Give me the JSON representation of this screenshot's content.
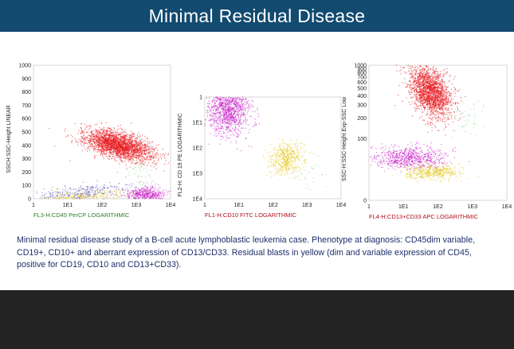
{
  "header": {
    "title": "Minimal Residual Disease",
    "background": "#124a70"
  },
  "chart_data": [
    {
      "type": "scatter",
      "xlabel": "FL3-H:CD45 PerCP LOGARITHMIC",
      "ylabel": "SSCH:SSC-Height LINEAR",
      "xlabel_color": "#2e7d2e",
      "x_scale": "log",
      "y_scale": "linear",
      "xlim": [
        1,
        10000
      ],
      "ylim": [
        0,
        1000
      ],
      "x_ticks": [
        "1",
        "1E1",
        "1E2",
        "1E3",
        "1E4"
      ],
      "y_ticks": [
        "0",
        "100",
        "200",
        "300",
        "400",
        "500",
        "600",
        "700",
        "800",
        "900",
        "1000"
      ],
      "populations": [
        {
          "color": "#e8141a",
          "x_center": 300,
          "y_center": 400,
          "density": "high"
        },
        {
          "color": "#c71ac7",
          "x_center": 1800,
          "y_center": 30,
          "density": "high"
        },
        {
          "color": "#e3c40a",
          "x_center": 20,
          "y_center": 5,
          "density": "medium"
        },
        {
          "color": "#6a5fc4",
          "x_center": 20,
          "y_center": 40,
          "density": "medium"
        },
        {
          "color": "#9bd49b",
          "x_center": 1500,
          "y_center": 180,
          "density": "low"
        }
      ]
    },
    {
      "type": "scatter",
      "xlabel": "FL1-H:CD10 FITC LOGARITHMIC",
      "ylabel": "FL2-H: CD 19 PE LOGARITHMIC",
      "xlabel_color": "#b0101a",
      "x_scale": "log",
      "y_scale": "log",
      "xlim": [
        1,
        10000
      ],
      "ylim": [
        1,
        10000
      ],
      "x_ticks": [
        "1",
        "1E1",
        "1E2",
        "1E3",
        "1E4"
      ],
      "y_ticks": [
        "1",
        "1E1",
        "1E2",
        "1E3",
        "1E4"
      ],
      "populations": [
        {
          "color": "#c71ac7",
          "x_center": 5,
          "y_center": 3,
          "density": "high"
        },
        {
          "color": "#e3c40a",
          "x_center": 250,
          "y_center": 250,
          "density": "medium"
        },
        {
          "color": "#9bd49b",
          "x_center": 1000,
          "y_center": 1000,
          "density": "low"
        }
      ]
    },
    {
      "type": "scatter",
      "xlabel": "FL4-H:CD13+CD33 APC LOGARITHMIC",
      "ylabel": "SSC-H:SSC-Height Exp-SSC Low",
      "xlabel_color": "#b0101a",
      "x_scale": "log",
      "y_scale": "custom",
      "xlim": [
        1,
        10000
      ],
      "x_ticks": [
        "1",
        "1E1",
        "1E2",
        "1E3",
        "1E4"
      ],
      "y_ticks": [
        "0",
        "100",
        "200",
        "300",
        "400",
        "500",
        "600",
        "700",
        "800",
        "900",
        "1000"
      ],
      "populations": [
        {
          "color": "#e8141a",
          "x_center": 60,
          "y_center": 450,
          "density": "high"
        },
        {
          "color": "#c71ac7",
          "x_center": 15,
          "y_center": 50,
          "density": "high"
        },
        {
          "color": "#e3c40a",
          "x_center": 70,
          "y_center": 25,
          "density": "medium"
        },
        {
          "color": "#9bd49b",
          "x_center": 700,
          "y_center": 200,
          "density": "low"
        }
      ]
    }
  ],
  "caption": "Minimal residual disease study of a B-cell acute lymphoblastic leukemia case.  Phenotype at diagnosis: CD45dim variable, CD19+, CD10+ and aberrant expression of CD13/CD33. Residual blasts in yellow (dim and variable expression of CD45, positive for CD19, CD10 and CD13+CD33)."
}
